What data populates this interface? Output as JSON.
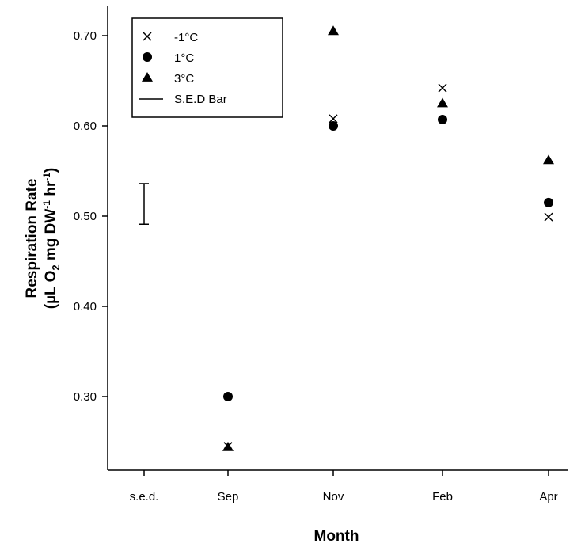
{
  "chart_data": {
    "type": "scatter",
    "title": "",
    "xlabel": "Month",
    "ylabel": {
      "line1": "Respiration Rate",
      "line2_parts": [
        "(µL O",
        "2",
        " mg DW",
        "-1",
        " hr",
        "-1",
        ")"
      ]
    },
    "categories": [
      "s.e.d.",
      "Sep",
      "Nov",
      "Feb",
      "Apr"
    ],
    "ylim": [
      0.22,
      0.74
    ],
    "yticks": [
      "0.30",
      "0.40",
      "0.50",
      "0.60",
      "0.70"
    ],
    "grid": false,
    "legend_position": "top-left",
    "series": [
      {
        "name": "-1°C",
        "marker": "cross",
        "points": [
          {
            "x": "Sep",
            "y": 0.245
          },
          {
            "x": "Nov",
            "y": 0.608
          },
          {
            "x": "Feb",
            "y": 0.642
          },
          {
            "x": "Apr",
            "y": 0.499
          }
        ]
      },
      {
        "name": "1°C",
        "marker": "circle",
        "points": [
          {
            "x": "Sep",
            "y": 0.3
          },
          {
            "x": "Nov",
            "y": 0.6
          },
          {
            "x": "Feb",
            "y": 0.607
          },
          {
            "x": "Apr",
            "y": 0.515
          }
        ]
      },
      {
        "name": "3°C",
        "marker": "triangle",
        "points": [
          {
            "x": "Sep",
            "y": 0.244
          },
          {
            "x": "Nov",
            "y": 0.705
          },
          {
            "x": "Feb",
            "y": 0.625
          },
          {
            "x": "Apr",
            "y": 0.562
          }
        ]
      }
    ],
    "sed_bar": {
      "name": "S.E.D Bar",
      "x": "s.e.d.",
      "low": 0.491,
      "high": 0.536
    }
  }
}
